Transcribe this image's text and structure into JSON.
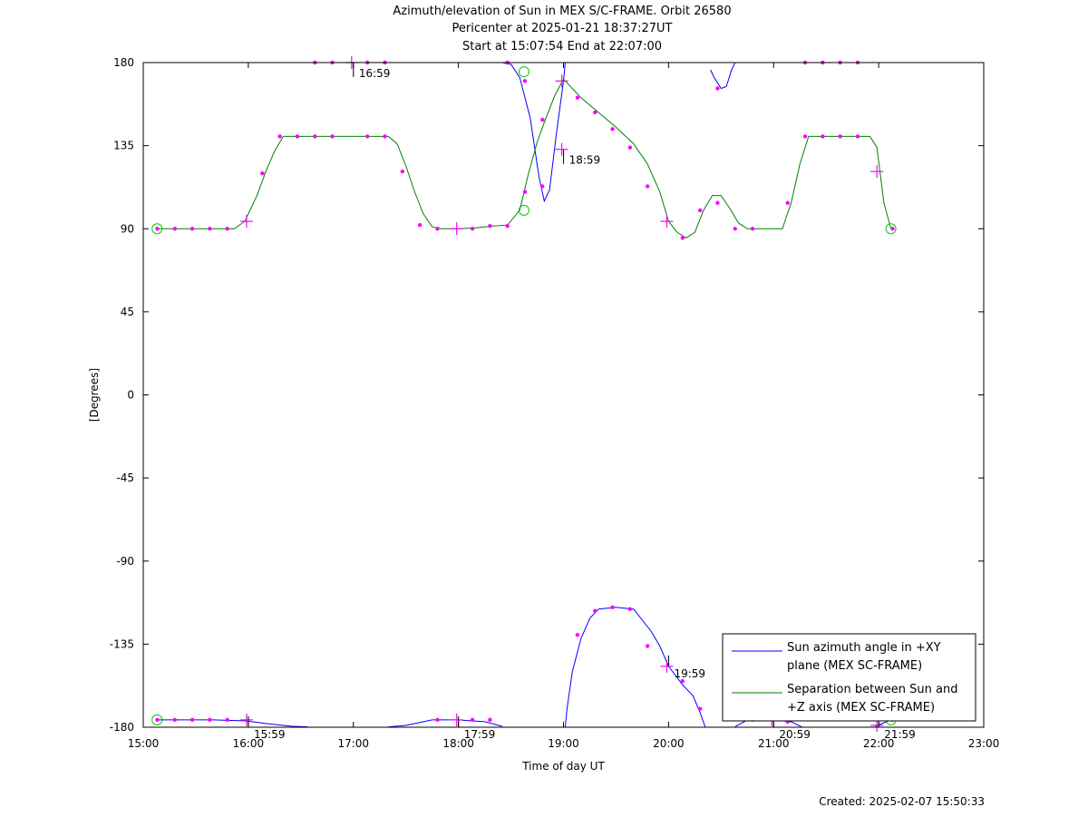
{
  "chart_data": {
    "type": "line",
    "title": "Azimuth/elevation of Sun in MEX S/C-FRAME.  Orbit 26580",
    "subtitle_1": "Pericenter at 2025-01-21 18:37:27UT",
    "subtitle_2": "Start at 15:07:54 End at 22:07:00",
    "xlabel": "Time of day UT",
    "ylabel": "[Degrees]",
    "xlim": [
      "15:00",
      "23:00"
    ],
    "ylim": [
      -180,
      180
    ],
    "x_ticks": [
      "15:00",
      "16:00",
      "17:00",
      "18:00",
      "19:00",
      "20:00",
      "21:00",
      "22:00",
      "23:00"
    ],
    "y_ticks": [
      "180",
      "135",
      "90",
      "45",
      "0",
      "-45",
      "-90",
      "-135",
      "-180"
    ],
    "hour_annotations": [
      {
        "time": "15:59",
        "label": "15:59",
        "value": -180
      },
      {
        "time": "16:59",
        "label": "16:59",
        "value": 180
      },
      {
        "time": "17:59",
        "label": "17:59",
        "value": -180
      },
      {
        "time": "18:59",
        "label": "18:59",
        "value": 133
      },
      {
        "time": "19:59",
        "label": "19:59",
        "value": -147
      },
      {
        "time": "20:59",
        "label": "20:59",
        "value": -180
      },
      {
        "time": "21:59",
        "label": "21:59",
        "value": -180
      }
    ],
    "legend_position": "bottom-right",
    "series": [
      {
        "name": "Sun azimuth angle in +XY plane (MEX SC-FRAME)",
        "legend_line1": "Sun azimuth angle in +XY",
        "legend_line2": "plane (MEX SC-FRAME)",
        "color": "#0000ff",
        "segments": [
          [
            [
              "15:07:54",
              -176
            ],
            [
              "15:20",
              -176
            ],
            [
              "15:40",
              -176
            ],
            [
              "15:58",
              -176.5
            ],
            [
              "16:10",
              -178
            ],
            [
              "16:25",
              -179.5
            ],
            [
              "16:34",
              -179.8
            ]
          ],
          [
            [
              "16:34",
              180
            ],
            [
              "16:40",
              180
            ],
            [
              "17:00",
              180
            ],
            [
              "17:20",
              180
            ]
          ],
          [
            [
              "17:20",
              -179.8
            ],
            [
              "17:30",
              -179
            ],
            [
              "17:45",
              -176
            ],
            [
              "18:00",
              -176
            ],
            [
              "18:15",
              -177
            ],
            [
              "18:25",
              -179.5
            ]
          ],
          [
            [
              "18:25",
              180
            ],
            [
              "18:30",
              179
            ],
            [
              "18:35",
              172
            ],
            [
              "18:41",
              150
            ],
            [
              "18:46",
              118
            ],
            [
              "18:49",
              105
            ],
            [
              "18:52",
              111
            ],
            [
              "18:56",
              142
            ],
            [
              "19:00",
              170
            ],
            [
              "19:01",
              180
            ]
          ],
          [
            [
              "19:01",
              -180
            ],
            [
              "19:02",
              -170
            ],
            [
              "19:05",
              -150
            ],
            [
              "19:10",
              -132
            ],
            [
              "19:15",
              -121
            ],
            [
              "19:20",
              -116
            ],
            [
              "19:30",
              -115
            ],
            [
              "19:40",
              -116
            ],
            [
              "19:50",
              -128
            ],
            [
              "19:55",
              -136
            ],
            [
              "20:00",
              -147
            ],
            [
              "20:08",
              -157
            ],
            [
              "20:14",
              -163
            ],
            [
              "20:18",
              -172
            ],
            [
              "20:21",
              -180
            ]
          ],
          [
            [
              "20:24",
              176
            ],
            [
              "20:26",
              172
            ],
            [
              "20:30",
              166
            ],
            [
              "20:33",
              167
            ],
            [
              "20:36",
              176
            ],
            [
              "20:38",
              180
            ]
          ],
          [
            [
              "20:38",
              -179.7
            ],
            [
              "20:45",
              -176
            ],
            [
              "21:00",
              -176
            ],
            [
              "21:10",
              -177
            ],
            [
              "21:16",
              -179.8
            ]
          ],
          [
            [
              "21:17",
              180
            ],
            [
              "21:30",
              180
            ],
            [
              "21:50",
              180
            ],
            [
              "21:58",
              180
            ]
          ],
          [
            [
              "21:58",
              -179.5
            ],
            [
              "22:02",
              -178
            ],
            [
              "22:07",
              -176
            ]
          ]
        ]
      },
      {
        "name": "Separation between Sun and +Z axis (MEX SC-FRAME)",
        "legend_line1": "Separation between Sun and",
        "legend_line2": "+Z axis (MEX SC-FRAME)",
        "color": "#008000",
        "points": [
          [
            "15:07:54",
            90
          ],
          [
            "15:30",
            90
          ],
          [
            "15:45",
            90
          ],
          [
            "15:52",
            90
          ],
          [
            "15:58",
            94
          ],
          [
            "16:05",
            108
          ],
          [
            "16:10",
            121
          ],
          [
            "16:15",
            132
          ],
          [
            "16:20",
            140
          ],
          [
            "16:40",
            140
          ],
          [
            "17:00",
            140
          ],
          [
            "17:20",
            140
          ],
          [
            "17:25",
            136
          ],
          [
            "17:30",
            124
          ],
          [
            "17:35",
            110
          ],
          [
            "17:40",
            98
          ],
          [
            "17:45",
            91
          ],
          [
            "17:50",
            90
          ],
          [
            "18:00",
            90
          ],
          [
            "18:10",
            90.5
          ],
          [
            "18:20",
            91.5
          ],
          [
            "18:28",
            92
          ],
          [
            "18:35",
            100
          ],
          [
            "18:40",
            120
          ],
          [
            "18:45",
            137
          ],
          [
            "18:50",
            150
          ],
          [
            "18:55",
            162
          ],
          [
            "19:00",
            171
          ],
          [
            "19:10",
            161
          ],
          [
            "19:20",
            153
          ],
          [
            "19:30",
            145
          ],
          [
            "19:40",
            136
          ],
          [
            "19:48",
            125
          ],
          [
            "19:55",
            110
          ],
          [
            "20:00",
            94
          ],
          [
            "20:05",
            88
          ],
          [
            "20:10",
            85
          ],
          [
            "20:15",
            88
          ],
          [
            "20:20",
            100
          ],
          [
            "20:25",
            108
          ],
          [
            "20:30",
            108
          ],
          [
            "20:35",
            101
          ],
          [
            "20:40",
            93
          ],
          [
            "20:45",
            90
          ],
          [
            "21:00",
            90
          ],
          [
            "21:05",
            90
          ],
          [
            "21:10",
            104
          ],
          [
            "21:15",
            125
          ],
          [
            "21:20",
            140
          ],
          [
            "21:40",
            140
          ],
          [
            "21:55",
            140
          ],
          [
            "21:59",
            134
          ],
          [
            "22:03",
            104
          ],
          [
            "22:07",
            90
          ]
        ]
      }
    ],
    "markers": {
      "color": "#ff00ff",
      "dots": [
        [
          "15:08",
          90
        ],
        [
          "15:18",
          90
        ],
        [
          "15:28",
          90
        ],
        [
          "15:38",
          90
        ],
        [
          "15:48",
          90
        ],
        [
          "16:08",
          120
        ],
        [
          "16:18",
          140
        ],
        [
          "16:28",
          140
        ],
        [
          "16:38",
          140
        ],
        [
          "16:48",
          140
        ],
        [
          "17:08",
          140
        ],
        [
          "17:18",
          140
        ],
        [
          "17:28",
          121
        ],
        [
          "17:38",
          92
        ],
        [
          "17:48",
          90
        ],
        [
          "18:08",
          90
        ],
        [
          "18:18",
          91.5
        ],
        [
          "18:28",
          91.5
        ],
        [
          "18:38",
          110
        ],
        [
          "18:48",
          149
        ],
        [
          "19:08",
          161
        ],
        [
          "19:18",
          153
        ],
        [
          "19:28",
          144
        ],
        [
          "19:38",
          134
        ],
        [
          "19:48",
          113
        ],
        [
          "20:08",
          85
        ],
        [
          "20:18",
          100
        ],
        [
          "20:28",
          104
        ],
        [
          "20:38",
          90
        ],
        [
          "20:48",
          90
        ],
        [
          "21:08",
          104
        ],
        [
          "21:18",
          140
        ],
        [
          "21:28",
          140
        ],
        [
          "21:38",
          140
        ],
        [
          "21:48",
          140
        ],
        [
          "22:08",
          90
        ],
        [
          "15:08",
          -176
        ],
        [
          "15:18",
          -176
        ],
        [
          "15:28",
          -176
        ],
        [
          "15:38",
          -176
        ],
        [
          "15:48",
          -176
        ],
        [
          "16:38",
          180
        ],
        [
          "16:48",
          180
        ],
        [
          "17:08",
          180
        ],
        [
          "17:18",
          180
        ],
        [
          "17:48",
          -176
        ],
        [
          "18:08",
          -176
        ],
        [
          "18:18",
          -176
        ],
        [
          "18:28",
          180
        ],
        [
          "18:38",
          170
        ],
        [
          "18:48",
          113
        ],
        [
          "19:08",
          -130
        ],
        [
          "19:18",
          -117
        ],
        [
          "19:28",
          -115
        ],
        [
          "19:38",
          -116
        ],
        [
          "19:48",
          -136
        ],
        [
          "20:08",
          -155
        ],
        [
          "20:18",
          -170
        ],
        [
          "20:28",
          166
        ],
        [
          "20:48",
          -176
        ],
        [
          "21:08",
          -177
        ],
        [
          "21:18",
          180
        ],
        [
          "21:28",
          180
        ],
        [
          "21:38",
          180
        ],
        [
          "21:48",
          180
        ],
        [
          "22:08",
          -176
        ]
      ],
      "crosses": [
        [
          "15:59",
          94
        ],
        [
          "16:59",
          180
        ],
        [
          "17:59",
          90
        ],
        [
          "18:59",
          170
        ],
        [
          "18:59",
          133
        ],
        [
          "19:59",
          94
        ],
        [
          "19:59",
          -147
        ],
        [
          "21:59",
          121
        ],
        [
          "15:59",
          -176
        ],
        [
          "17:59",
          -176
        ],
        [
          "20:59",
          -176
        ],
        [
          "21:59",
          -179
        ]
      ],
      "circles": [
        [
          "15:07:54",
          90
        ],
        [
          "15:07:54",
          -176
        ],
        [
          "18:37:27",
          100
        ],
        [
          "18:37:27",
          175
        ],
        [
          "22:07",
          90
        ],
        [
          "22:07",
          -176
        ]
      ]
    }
  },
  "footer": {
    "created": "Created: 2025-02-07 15:50:33"
  }
}
